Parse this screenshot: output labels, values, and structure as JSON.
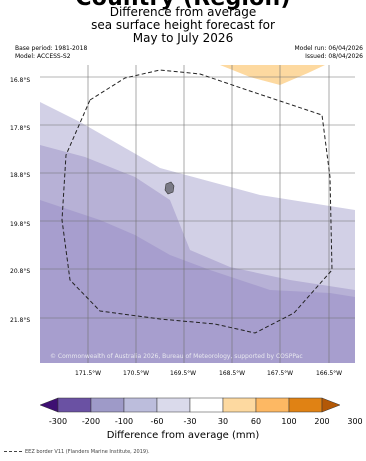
{
  "header": {
    "cut_title": "Country (Region)",
    "title_lines": [
      "Difference from average",
      "sea surface height forecast for",
      "May to July 2026"
    ]
  },
  "meta": {
    "base_period": "Base period: 1981-2018",
    "model": "Model: ACCESS-S2",
    "model_run": "Model run: 06/04/2026",
    "issued": "Issued: 08/04/2026"
  },
  "map": {
    "lat_labels": [
      "16.8°S",
      "17.8°S",
      "18.8°S",
      "19.8°S",
      "20.8°S",
      "21.8°S"
    ],
    "lon_labels": [
      "171.5°W",
      "170.5°W",
      "169.5°W",
      "168.5°W",
      "167.5°W",
      "166.5°W"
    ],
    "credit": "© Commonwealth of Australia 2026, Bureau of Meteorology, supported by COSPPac",
    "fill_colors": {
      "light_lavender": "#d2d0e6",
      "medium_lavender": "#b7b1d6",
      "dark_lavender": "#a79ece",
      "peach": "#fdd9a0",
      "island": "#7a7a86"
    }
  },
  "colorbar": {
    "ticks": [
      "-300",
      "-200",
      "-100",
      "-60",
      "-30",
      "30",
      "60",
      "100",
      "200",
      "300"
    ],
    "colors": [
      "#3e0f72",
      "#6a51a3",
      "#9e9ac8",
      "#bcbddc",
      "#dadaeb",
      "#ffffff",
      "#fdd9a0",
      "#fdb863",
      "#e08214",
      "#b35806"
    ],
    "title": "Difference from average (mm)"
  },
  "footer": {
    "legend": "EEZ border V11 (Flanders Marine Institute, 2019)."
  }
}
